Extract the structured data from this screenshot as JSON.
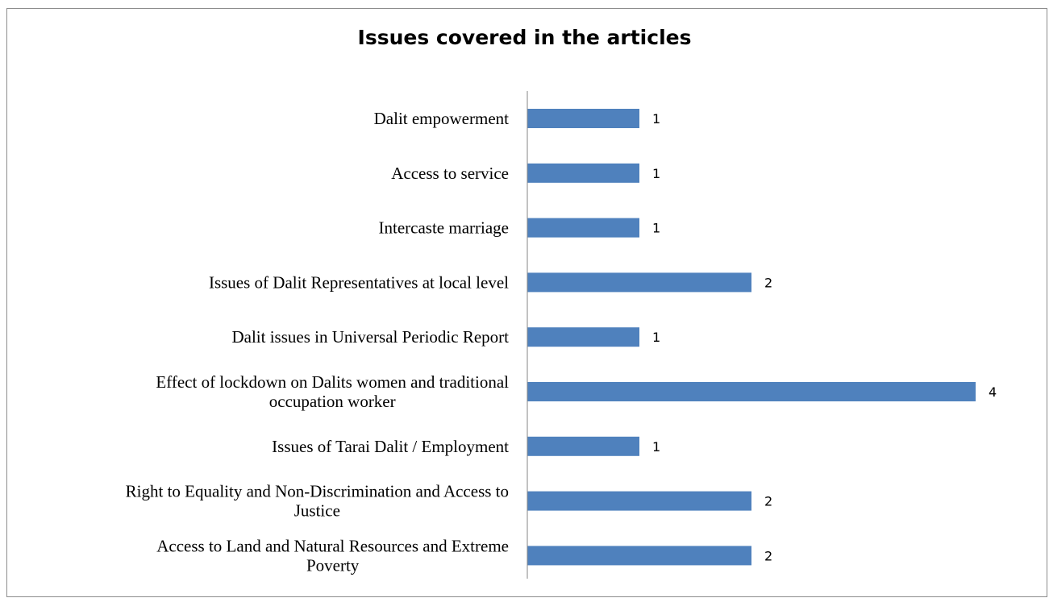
{
  "chart_data": {
    "type": "bar",
    "orientation": "horizontal",
    "title": "Issues covered in the articles",
    "categories": [
      [
        "Dalit empowerment"
      ],
      [
        "Access to service"
      ],
      [
        "Intercaste marriage"
      ],
      [
        "Issues of Dalit Representatives at local level"
      ],
      [
        "Dalit issues in Universal Periodic Report"
      ],
      [
        "Effect of lockdown on Dalits women and traditional",
        "occupation worker"
      ],
      [
        "Issues of Tarai Dalit / Employment"
      ],
      [
        "Right to Equality and Non-Discrimination and Access to",
        "Justice"
      ],
      [
        "Access to Land and Natural Resources and Extreme",
        "Poverty"
      ]
    ],
    "values": [
      1,
      1,
      1,
      2,
      1,
      4,
      1,
      2,
      2
    ],
    "data_labels": true,
    "grid": false,
    "legend": "none",
    "bar_color": "#4f81bd",
    "axis_color": "#868686"
  }
}
